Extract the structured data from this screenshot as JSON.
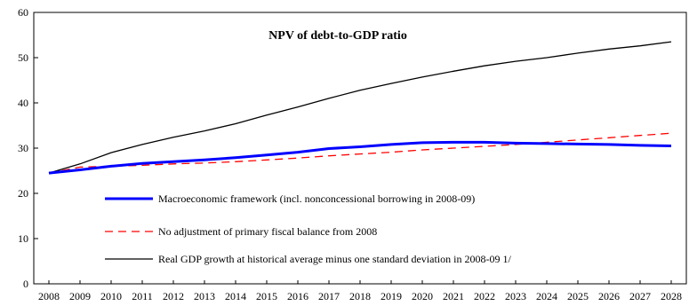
{
  "chart_data": {
    "type": "line",
    "title": "NPV of debt-to-GDP ratio",
    "xlabel": "",
    "ylabel": "",
    "x": [
      "2008",
      "2009",
      "2010",
      "2011",
      "2012",
      "2013",
      "2014",
      "2015",
      "2016",
      "2017",
      "2018",
      "2019",
      "2020",
      "2021",
      "2022",
      "2023",
      "2024",
      "2025",
      "2026",
      "2027",
      "2028"
    ],
    "ylim": [
      0,
      60
    ],
    "yticks": [
      0,
      10,
      20,
      30,
      40,
      50,
      60
    ],
    "grid": false,
    "legend_position": "center",
    "series": [
      {
        "name": "Macroeconomic framework (incl. nonconcessional borrowing in 2008-09)",
        "color": "#0000ff",
        "style": "solid-thick",
        "values": [
          24.5,
          25.2,
          26.0,
          26.6,
          27.0,
          27.4,
          27.9,
          28.5,
          29.1,
          29.9,
          30.3,
          30.8,
          31.2,
          31.3,
          31.3,
          31.1,
          31.0,
          30.9,
          30.8,
          30.6,
          30.5
        ]
      },
      {
        "name": "No adjustment of primary fiscal balance from 2008",
        "color": "#ff0000",
        "style": "dashed",
        "values": [
          24.5,
          25.8,
          26.0,
          26.2,
          26.5,
          26.7,
          27.0,
          27.4,
          27.8,
          28.3,
          28.7,
          29.1,
          29.6,
          30.0,
          30.4,
          30.8,
          31.3,
          31.8,
          32.3,
          32.8,
          33.3
        ]
      },
      {
        "name": "Real GDP growth at historical average minus one standard deviation in 2008-09 1/",
        "color": "#000000",
        "style": "solid-thin",
        "values": [
          24.5,
          26.5,
          29.0,
          30.8,
          32.4,
          33.8,
          35.4,
          37.3,
          39.1,
          41.0,
          42.8,
          44.3,
          45.7,
          47.0,
          48.2,
          49.2,
          50.0,
          51.0,
          51.9,
          52.6,
          53.5
        ]
      }
    ]
  }
}
